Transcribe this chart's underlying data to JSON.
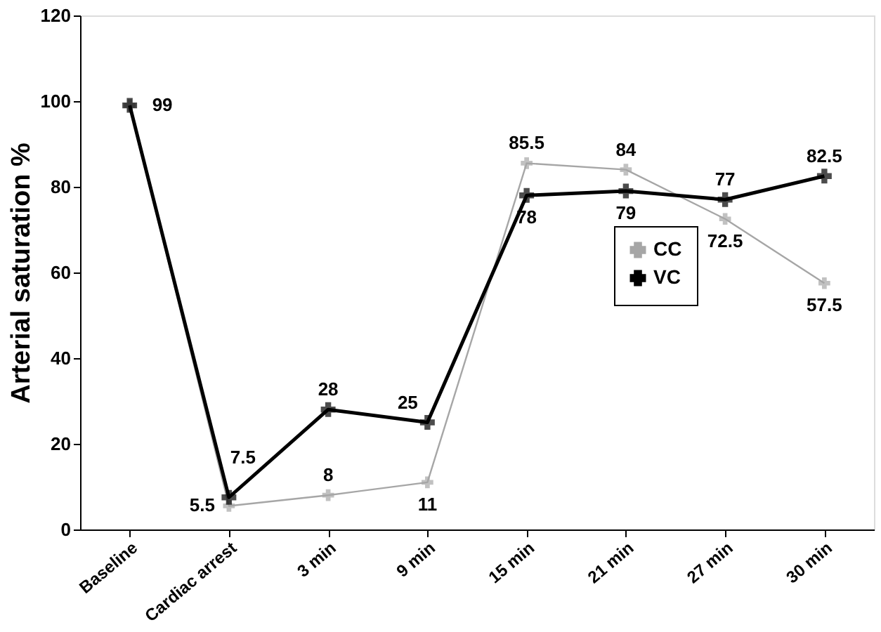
{
  "chart_data": {
    "type": "line",
    "ylabel": "Arterial saturation %",
    "categories": [
      "Baseline",
      "Cardiac arrest",
      "3 min",
      "9 min",
      "15 min",
      "21 min",
      "27 min",
      "30 min"
    ],
    "series": [
      {
        "name": "CC",
        "color": "#a6a6a6",
        "values": [
          99,
          5.5,
          8,
          11,
          85.5,
          84,
          72.5,
          57.5
        ],
        "value_labels": [
          null,
          "5.5",
          "8",
          "11",
          "85.5",
          "84",
          "72.5",
          "57.5"
        ]
      },
      {
        "name": "VC",
        "color": "#000000",
        "values": [
          99,
          7.5,
          28,
          25,
          78,
          79,
          77,
          82.5
        ],
        "value_labels": [
          "99",
          "7.5",
          "28",
          "25",
          "78",
          "79",
          "77",
          "82.5"
        ]
      }
    ],
    "ylim": [
      0,
      120
    ],
    "yticks": [
      0,
      20,
      40,
      60,
      80,
      100,
      120
    ],
    "grid": false,
    "legend": "right",
    "marker": "cross",
    "line_style": "solid"
  }
}
